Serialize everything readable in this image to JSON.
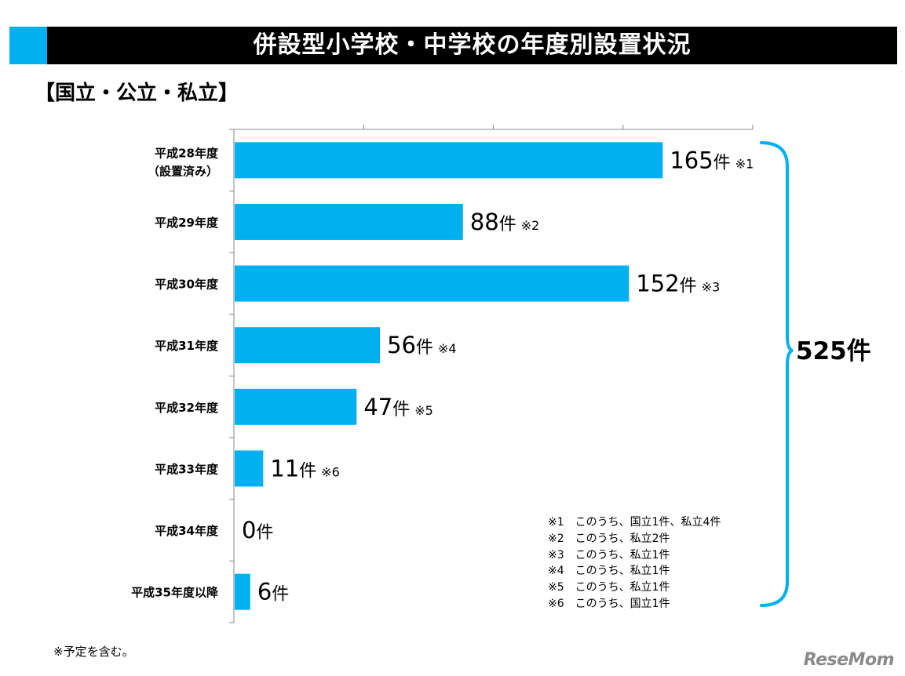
{
  "title": "併設型小学校・中学校の年度別設置状況",
  "subtitle": "【国立・公立・私立】",
  "colors": {
    "bar": "#00b0f0",
    "accent": "#00b0f0",
    "title_bg": "#000000",
    "brace": "#00b0f0"
  },
  "chart_data": {
    "type": "bar",
    "orientation": "horizontal",
    "categories": [
      "平成28年度",
      "平成29年度",
      "平成30年度",
      "平成31年度",
      "平成32年度",
      "平成33年度",
      "平成34年度",
      "平成35年度以降"
    ],
    "category_sublabels": [
      "（設置済み）",
      "",
      "",
      "",
      "",
      "",
      "",
      ""
    ],
    "values": [
      165,
      88,
      152,
      56,
      47,
      11,
      0,
      6
    ],
    "unit": "件",
    "value_notes": [
      "※1",
      "※2",
      "※3",
      "※4",
      "※5",
      "※6",
      "",
      ""
    ],
    "xlim": [
      0,
      200
    ],
    "grid": false,
    "total_label": "525件"
  },
  "notes": [
    "※1　このうち、国立1件、私立4件",
    "※2　このうち、私立2件",
    "※3　このうち、私立1件",
    "※4　このうち、私立1件",
    "※5　このうち、私立1件",
    "※6　このうち、国立1件"
  ],
  "footnote": "※予定を含む。",
  "brand": "ReseMom"
}
